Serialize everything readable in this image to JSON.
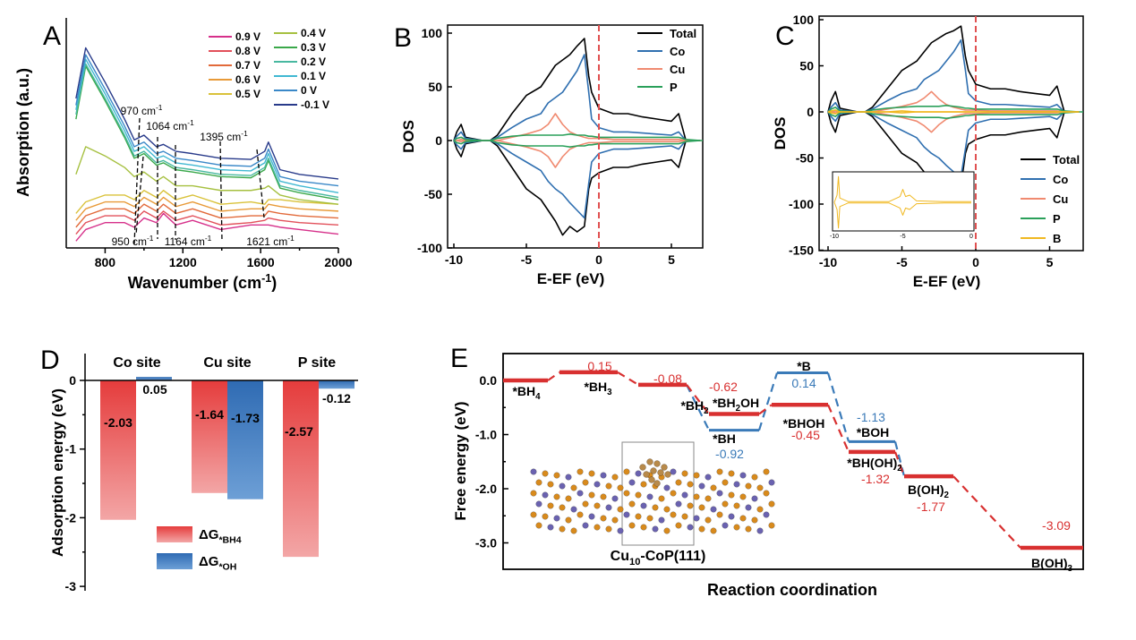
{
  "panel_labels": {
    "A": "A",
    "B": "B",
    "C": "C",
    "D": "D",
    "E": "E"
  },
  "chart_data": [
    {
      "panel": "A",
      "type": "line",
      "ylabel": "Absorption (a.u.)",
      "xlabel": {
        "t": "Wavenumber (cm",
        "sup": "-1",
        "a": ")"
      },
      "xlim": [
        600,
        2000
      ],
      "xticks": [
        800,
        1200,
        1600,
        2000
      ],
      "x": [
        650,
        700,
        800,
        900,
        950,
        1000,
        1064,
        1100,
        1164,
        1250,
        1395,
        1550,
        1621,
        1640,
        1700,
        1800,
        2000
      ],
      "series": [
        {
          "name": "0.9 V",
          "color": "#d6308a",
          "values": [
            3,
            8,
            11,
            11,
            9,
            13,
            11,
            15,
            10,
            12,
            8,
            10,
            10,
            10,
            9,
            8,
            6
          ]
        },
        {
          "name": "0.8 V",
          "color": "#e2505a",
          "values": [
            6,
            11,
            14,
            14,
            12,
            16,
            13,
            16,
            12,
            14,
            10,
            11,
            12,
            13,
            12,
            11,
            10
          ]
        },
        {
          "name": "0.7 V",
          "color": "#e26a3a",
          "values": [
            9,
            14,
            17,
            17,
            15,
            19,
            16,
            19,
            15,
            17,
            13,
            14,
            14,
            16,
            15,
            14,
            13
          ]
        },
        {
          "name": "0.6 V",
          "color": "#e89a38",
          "values": [
            12,
            17,
            20,
            20,
            18,
            22,
            19,
            22,
            18,
            20,
            16,
            17,
            17,
            19,
            18,
            17,
            16
          ]
        },
        {
          "name": "0.5 V",
          "color": "#d9c23a",
          "values": [
            15,
            20,
            23,
            23,
            21,
            25,
            22,
            25,
            21,
            23,
            19,
            20,
            19,
            21,
            21,
            20,
            19
          ]
        },
        {
          "name": "0.4 V",
          "color": "#a6c040",
          "values": [
            32,
            44,
            40,
            35,
            31,
            33,
            29,
            31,
            27,
            27,
            25,
            25,
            26,
            27,
            23,
            21,
            19
          ]
        },
        {
          "name": "0.3 V",
          "color": "#3aa84a",
          "values": [
            56,
            79,
            64,
            48,
            39,
            41,
            36,
            37,
            34,
            33,
            31,
            30.5,
            34,
            38,
            26,
            24,
            21
          ]
        },
        {
          "name": "0.2 V",
          "color": "#48b8a0",
          "values": [
            58,
            80,
            65,
            49,
            40,
            42,
            37,
            38,
            35,
            34,
            32,
            31.5,
            35,
            39,
            27,
            25,
            22
          ]
        },
        {
          "name": "0.1 V",
          "color": "#40b8d2",
          "values": [
            60,
            82,
            67,
            51,
            42,
            44,
            39,
            40,
            37,
            36,
            34,
            33.5,
            37,
            41,
            29,
            27,
            24
          ]
        },
        {
          "name": "0 V",
          "color": "#3a88c8",
          "values": [
            62,
            84,
            69,
            53,
            44,
            46,
            41,
            42,
            39,
            38,
            36,
            35.5,
            39,
            43,
            31,
            29,
            27
          ]
        },
        {
          "name": "-0.1 V",
          "color": "#283a8a",
          "values": [
            65,
            87,
            72,
            56,
            47,
            49,
            44,
            45,
            42,
            41,
            39,
            38.5,
            42,
            46,
            34,
            32,
            30
          ]
        }
      ],
      "annotations": [
        {
          "wavenumber": 970,
          "t": "970 cm",
          "sup": "-1"
        },
        {
          "wavenumber": 1064,
          "t": "1064 cm",
          "sup": "-1"
        },
        {
          "wavenumber": 1395,
          "t": "1395 cm",
          "sup": "-1"
        },
        {
          "wavenumber": 950,
          "t": "950 cm",
          "sup": "-1"
        },
        {
          "wavenumber": 1164,
          "t": "1164 cm",
          "sup": "-1"
        },
        {
          "wavenumber": 1621,
          "t": "1621 cm",
          "sup": "-1"
        }
      ]
    },
    {
      "panel": "B",
      "type": "line",
      "ylabel": "DOS",
      "xlabel": "E-EF (eV)",
      "xlim": [
        -10.5,
        7.2
      ],
      "ylim": [
        -100,
        107
      ],
      "xticks": [
        -10,
        -5,
        0,
        5
      ],
      "yticks": [
        -100,
        -50,
        0,
        50,
        100
      ],
      "fermi_level": 0,
      "fermi_color": "#e05050",
      "legend": "top-right",
      "x": [
        -10,
        -9.8,
        -9.5,
        -9.2,
        -8,
        -7.5,
        -7,
        -6,
        -5,
        -4,
        -3.5,
        -3,
        -2.5,
        -2,
        -1.5,
        -1,
        -0.7,
        -0.5,
        0,
        1,
        2,
        3,
        4,
        5,
        5.5,
        6,
        7
      ],
      "series": [
        {
          "name": "Total",
          "color": "#000000",
          "up": [
            0,
            8,
            15,
            3,
            0,
            0,
            5,
            25,
            42,
            50,
            60,
            70,
            75,
            80,
            88,
            95,
            60,
            45,
            30,
            25,
            25,
            22,
            20,
            18,
            25,
            0,
            0
          ],
          "down": [
            0,
            -8,
            -15,
            -3,
            0,
            0,
            -5,
            -25,
            -45,
            -55,
            -65,
            -75,
            -88,
            -80,
            -85,
            -80,
            -45,
            -35,
            -30,
            -25,
            -25,
            -22,
            -20,
            -18,
            -25,
            0,
            0
          ]
        },
        {
          "name": "Co",
          "color": "#2f6fb0",
          "up": [
            0,
            4,
            8,
            2,
            0,
            0,
            3,
            12,
            20,
            25,
            35,
            40,
            45,
            55,
            65,
            80,
            45,
            20,
            12,
            8,
            8,
            7,
            6,
            5,
            8,
            0,
            0
          ],
          "down": [
            0,
            -4,
            -8,
            -2,
            0,
            0,
            -3,
            -12,
            -20,
            -28,
            -38,
            -45,
            -50,
            -58,
            -65,
            -72,
            -40,
            -20,
            -12,
            -8,
            -8,
            -7,
            -6,
            -5,
            -8,
            0,
            0
          ]
        },
        {
          "name": "Cu",
          "color": "#f08a70",
          "up": [
            0,
            0,
            1,
            0,
            0,
            0,
            0,
            3,
            6,
            10,
            15,
            25,
            15,
            8,
            5,
            3,
            2,
            2,
            2,
            1,
            1,
            1,
            1,
            1,
            1,
            0,
            0
          ],
          "down": [
            0,
            0,
            -1,
            0,
            0,
            0,
            0,
            -3,
            -6,
            -10,
            -15,
            -25,
            -15,
            -8,
            -5,
            -3,
            -2,
            -2,
            -2,
            -1,
            -1,
            -1,
            -1,
            -1,
            -1,
            0,
            0
          ]
        },
        {
          "name": "P",
          "color": "#2aa05a",
          "up": [
            0,
            2,
            3,
            1,
            0,
            0,
            2,
            4,
            5,
            5,
            5,
            5,
            5,
            6,
            5,
            5,
            4,
            4,
            3,
            3,
            3,
            3,
            3,
            3,
            3,
            1,
            0
          ],
          "down": [
            0,
            -2,
            -3,
            -1,
            0,
            0,
            -2,
            -4,
            -5,
            -5,
            -5,
            -5,
            -5,
            -6,
            -5,
            -5,
            -4,
            -4,
            -3,
            -3,
            -3,
            -3,
            -3,
            -3,
            -3,
            -1,
            0
          ]
        }
      ]
    },
    {
      "panel": "C",
      "type": "line",
      "ylabel": "DOS",
      "xlabel": "E-EF (eV)",
      "xlim": [
        -10.6,
        7.3
      ],
      "ylim": [
        -150,
        102
      ],
      "xticks": [
        -10,
        -5,
        0,
        5
      ],
      "yticks": [
        -150,
        -100,
        -50,
        0,
        50,
        100
      ],
      "fermi_level": 0,
      "fermi_color": "#e05050",
      "legend": "bottom-right",
      "x": [
        -10,
        -9.8,
        -9.5,
        -9.2,
        -8,
        -7.5,
        -7,
        -6,
        -5,
        -4,
        -3.5,
        -3,
        -2.5,
        -2,
        -1.5,
        -1,
        -0.7,
        -0.5,
        0,
        1,
        2,
        3,
        4,
        5,
        5.5,
        6,
        7
      ],
      "series": [
        {
          "name": "Total",
          "color": "#000000",
          "up": [
            0,
            12,
            22,
            4,
            0,
            0,
            5,
            25,
            45,
            55,
            65,
            75,
            80,
            85,
            88,
            93,
            60,
            45,
            30,
            25,
            25,
            22,
            20,
            18,
            28,
            0,
            0
          ],
          "down": [
            0,
            -12,
            -22,
            -4,
            0,
            0,
            -5,
            -25,
            -45,
            -55,
            -65,
            -75,
            -88,
            -82,
            -85,
            -80,
            -45,
            -35,
            -30,
            -25,
            -25,
            -22,
            -20,
            -18,
            -28,
            0,
            0
          ]
        },
        {
          "name": "Co",
          "color": "#2f6fb0",
          "up": [
            0,
            5,
            10,
            2,
            0,
            0,
            3,
            12,
            20,
            25,
            35,
            40,
            45,
            55,
            65,
            78,
            45,
            20,
            12,
            8,
            8,
            7,
            6,
            5,
            8,
            0,
            0
          ],
          "down": [
            0,
            -5,
            -10,
            -2,
            0,
            0,
            -3,
            -12,
            -20,
            -28,
            -38,
            -45,
            -50,
            -58,
            -65,
            -70,
            -40,
            -20,
            -12,
            -8,
            -8,
            -7,
            -6,
            -5,
            -8,
            0,
            0
          ]
        },
        {
          "name": "Cu",
          "color": "#f08a70",
          "up": [
            0,
            0,
            1,
            0,
            0,
            0,
            0,
            3,
            6,
            10,
            15,
            22,
            14,
            8,
            5,
            3,
            2,
            2,
            2,
            1,
            1,
            1,
            1,
            1,
            1,
            0,
            0
          ],
          "down": [
            0,
            0,
            -1,
            0,
            0,
            0,
            0,
            -3,
            -6,
            -10,
            -15,
            -22,
            -14,
            -8,
            -5,
            -3,
            -2,
            -2,
            -2,
            -1,
            -1,
            -1,
            -1,
            -1,
            -1,
            0,
            0
          ]
        },
        {
          "name": "P",
          "color": "#2aa05a",
          "up": [
            0,
            3,
            5,
            1,
            0,
            0,
            2,
            4,
            5,
            6,
            6,
            6,
            6,
            7,
            6,
            5,
            4,
            4,
            3,
            3,
            3,
            3,
            3,
            3,
            3,
            1,
            0
          ],
          "down": [
            0,
            -3,
            -5,
            -1,
            0,
            0,
            -2,
            -4,
            -5,
            -6,
            -6,
            -6,
            -6,
            -7,
            -6,
            -5,
            -4,
            -4,
            -3,
            -3,
            -3,
            -3,
            -3,
            -3,
            -3,
            -1,
            0
          ]
        },
        {
          "name": "B",
          "color": "#f0b820",
          "up": [
            0,
            1,
            2,
            0,
            0,
            0,
            0,
            0,
            1,
            0,
            0,
            0,
            0,
            0,
            0,
            0,
            0,
            0,
            0,
            0,
            0,
            0,
            0,
            0,
            0,
            0,
            0
          ],
          "down": [
            0,
            -1,
            -2,
            0,
            0,
            0,
            0,
            0,
            -1,
            0,
            0,
            0,
            0,
            0,
            0,
            0,
            0,
            0,
            0,
            0,
            0,
            0,
            0,
            0,
            0,
            0,
            0
          ]
        }
      ],
      "inset": {
        "series": "B",
        "color": "#f0b820",
        "xticks": [
          -10,
          -5,
          0
        ],
        "x": [
          -10,
          -9.8,
          -9.7,
          -9.6,
          -9,
          -6,
          -5.2,
          -5,
          -4.8,
          -4.5,
          -4,
          -2,
          0
        ],
        "up": [
          0,
          0.5,
          1.8,
          0.3,
          0.05,
          0.05,
          0.4,
          0.9,
          0.4,
          0.5,
          0.1,
          0.05,
          0.05
        ],
        "down": [
          0,
          -0.5,
          -1.8,
          -0.3,
          -0.05,
          -0.05,
          -0.4,
          -0.9,
          -0.4,
          -0.5,
          -0.1,
          -0.05,
          -0.05
        ]
      }
    },
    {
      "panel": "D",
      "type": "bar",
      "ylabel": "Adsorption energy (eV)",
      "ylim": [
        -3.06,
        0.39
      ],
      "yticks": [
        0,
        -1,
        -2,
        -3
      ],
      "categories": [
        "Co site",
        "Cu site",
        "P site"
      ],
      "legend": "bottom-center",
      "series": [
        {
          "name": {
            "t": "ΔG",
            "s": "*BH4"
          },
          "color": "#e53c3c",
          "values": [
            -2.03,
            -1.64,
            -2.57
          ]
        },
        {
          "name": {
            "t": "ΔG",
            "s": "*OH"
          },
          "color": "#2f6bb3",
          "values": [
            0.05,
            -1.73,
            -0.12
          ]
        }
      ]
    },
    {
      "panel": "E",
      "type": "line",
      "ylabel": "Free energy (eV)",
      "xlabel": "Reaction coordination",
      "ylim": [
        -3.5,
        0.5
      ],
      "yticks": [
        "0.0",
        "-1.0",
        "-2.0",
        "-3.0"
      ],
      "red_color": "#d83030",
      "blue_color": "#3a7ab8",
      "red_path": [
        {
          "label": {
            "t": "*BH",
            "s": "4"
          },
          "value": 0
        },
        {
          "label": {
            "t": "*BH",
            "s": "3"
          },
          "value": 0.15
        },
        {
          "label": {
            "t": "*BH",
            "s": "2"
          },
          "value": -0.08
        },
        {
          "label": {
            "t": "*BH",
            "s": "2",
            "a": "OH"
          },
          "value": -0.62
        },
        {
          "label": {
            "t": "*BHOH"
          },
          "value": -0.45
        },
        {
          "label": {
            "t": "*BH(OH)",
            "s": "2"
          },
          "value": -1.32
        },
        {
          "label": {
            "t": "B(OH)",
            "s": "2"
          },
          "value": -1.77
        },
        {
          "label": {
            "t": "B(OH)",
            "s": "3"
          },
          "value": -3.09
        }
      ],
      "blue_path": [
        {
          "label": {
            "t": "*BH"
          },
          "value": -0.92
        },
        {
          "label": {
            "t": "*B"
          },
          "value": 0.14
        },
        {
          "label": {
            "t": "*BOH"
          },
          "value": -1.13
        }
      ],
      "structure_caption": {
        "t": "Cu",
        "s": "10",
        "a": "-CoP(111)"
      }
    }
  ]
}
